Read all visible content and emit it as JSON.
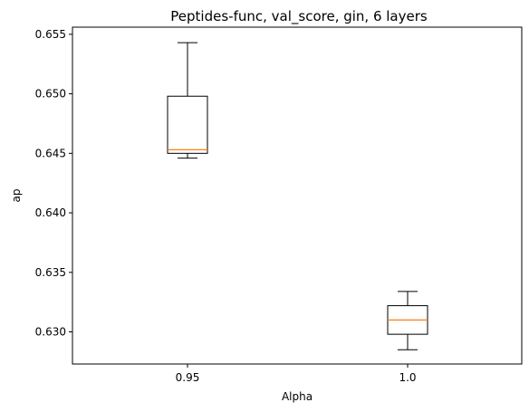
{
  "chart_data": {
    "type": "box",
    "title": "Peptides-func, val_score, gin, 6 layers",
    "xlabel": "Alpha",
    "ylabel": "ap",
    "categories": [
      "0.95",
      "1.0"
    ],
    "boxes": [
      {
        "category": "0.95",
        "whisker_low": 0.6446,
        "q1": 0.645,
        "median": 0.6453,
        "q3": 0.6498,
        "whisker_high": 0.6543
      },
      {
        "category": "1.0",
        "whisker_low": 0.6285,
        "q1": 0.6298,
        "median": 0.631,
        "q3": 0.6322,
        "whisker_high": 0.6334
      }
    ],
    "ylim": [
      0.6273,
      0.6556
    ],
    "yticks": [
      "0.630",
      "0.635",
      "0.640",
      "0.645",
      "0.650",
      "0.655"
    ],
    "ytick_values": [
      0.63,
      0.635,
      0.64,
      0.645,
      0.65,
      0.655
    ],
    "grid": false,
    "colors": {
      "box": "#000000",
      "median": "#ff7f0e"
    }
  }
}
